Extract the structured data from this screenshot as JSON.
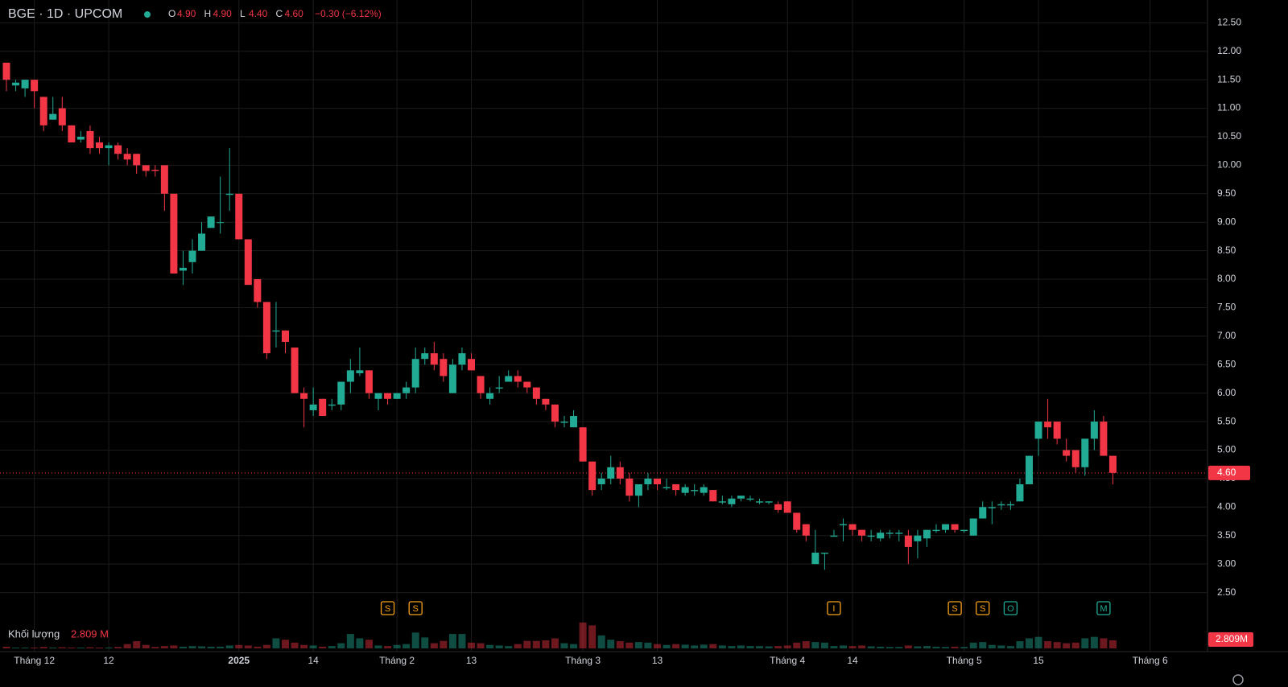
{
  "chart_data": {
    "type": "candlestick",
    "symbol": "BGE · 1D · UPCOM",
    "ohlc_labels": [
      "O",
      "H",
      "L",
      "C"
    ],
    "ohlc_values": [
      "4.90",
      "4.90",
      "4.40",
      "4.60"
    ],
    "change": "−0.30 (−6.12%)",
    "up_color": "#22ab94",
    "down_color": "#f23645",
    "ylim": [
      2.0,
      12.9
    ],
    "yticks": [
      {
        "value": 2.5,
        "label": "2.50"
      },
      {
        "value": 3,
        "label": "3.00"
      },
      {
        "value": 3.5,
        "label": "3.50"
      },
      {
        "value": 4,
        "label": "4.00"
      },
      {
        "value": 4.5,
        "label": "4.50"
      },
      {
        "value": 5,
        "label": "5.00"
      },
      {
        "value": 5.5,
        "label": "5.50"
      },
      {
        "value": 6,
        "label": "6.00"
      },
      {
        "value": 6.5,
        "label": "6.50"
      },
      {
        "value": 7,
        "label": "7.00"
      },
      {
        "value": 7.5,
        "label": "7.50"
      },
      {
        "value": 8,
        "label": "8.00"
      },
      {
        "value": 8.5,
        "label": "8.50"
      },
      {
        "value": 9,
        "label": "9.00"
      },
      {
        "value": 9.5,
        "label": "9.50"
      },
      {
        "value": 10,
        "label": "10.00"
      },
      {
        "value": 10.5,
        "label": "10.50"
      },
      {
        "value": 11,
        "label": "11.00"
      },
      {
        "value": 11.5,
        "label": "11.50"
      },
      {
        "value": 12,
        "label": "12.00"
      },
      {
        "value": 12.5,
        "label": "12.50"
      }
    ],
    "last_price": {
      "value": 4.6,
      "label": "4.60"
    },
    "grid": true,
    "categories": [
      null,
      null,
      null,
      "Tháng 12",
      null,
      null,
      null,
      null,
      null,
      null,
      null,
      "12",
      null,
      null,
      null,
      null,
      null,
      null,
      null,
      null,
      null,
      null,
      null,
      null,
      null,
      "2025",
      null,
      null,
      null,
      null,
      null,
      null,
      null,
      "14",
      null,
      null,
      null,
      null,
      null,
      null,
      null,
      null,
      "Tháng 2",
      null,
      null,
      null,
      null,
      null,
      null,
      null,
      "13",
      null,
      null,
      null,
      null,
      null,
      null,
      null,
      null,
      null,
      null,
      null,
      "Tháng 3",
      null,
      null,
      null,
      null,
      null,
      null,
      null,
      "13",
      null,
      null,
      null,
      null,
      null,
      null,
      null,
      null,
      null,
      null,
      null,
      null,
      null,
      "Tháng 4",
      null,
      null,
      null,
      null,
      null,
      null,
      "14",
      null,
      null,
      null,
      null,
      null,
      null,
      null,
      null,
      null,
      null,
      null,
      "Tháng 5",
      null,
      null,
      null,
      null,
      null,
      null,
      null,
      "15",
      null,
      null,
      null,
      null,
      null,
      null,
      null,
      null,
      null,
      null,
      null,
      "Tháng 6"
    ],
    "ohlc": [
      [
        11.8,
        11.8,
        11.3,
        11.5
      ],
      [
        11.4,
        11.5,
        11.3,
        11.45
      ],
      [
        11.35,
        11.5,
        11.2,
        11.5
      ],
      [
        11.5,
        11.5,
        11.0,
        11.3
      ],
      [
        11.2,
        11.2,
        10.6,
        10.7
      ],
      [
        10.8,
        11.2,
        10.8,
        10.9
      ],
      [
        11.0,
        11.2,
        10.6,
        10.7
      ],
      [
        10.7,
        10.7,
        10.4,
        10.4
      ],
      [
        10.45,
        10.6,
        10.4,
        10.5
      ],
      [
        10.6,
        10.7,
        10.2,
        10.3
      ],
      [
        10.4,
        10.5,
        10.2,
        10.3
      ],
      [
        10.3,
        10.4,
        10.0,
        10.35
      ],
      [
        10.35,
        10.4,
        10.1,
        10.2
      ],
      [
        10.2,
        10.3,
        10.0,
        10.1
      ],
      [
        10.2,
        10.2,
        9.85,
        10.0
      ],
      [
        10.0,
        10.0,
        9.8,
        9.9
      ],
      [
        9.92,
        10.0,
        9.8,
        9.9
      ],
      [
        10.0,
        10.0,
        9.2,
        9.5
      ],
      [
        9.5,
        9.5,
        8.1,
        8.1
      ],
      [
        8.15,
        8.5,
        7.9,
        8.2
      ],
      [
        8.3,
        8.7,
        8.1,
        8.5
      ],
      [
        8.5,
        9.0,
        8.5,
        8.8
      ],
      [
        8.9,
        9.1,
        8.9,
        9.1
      ],
      [
        9.0,
        9.8,
        8.8,
        9.0
      ],
      [
        9.48,
        10.3,
        9.2,
        9.5
      ],
      [
        9.5,
        9.5,
        8.7,
        8.7
      ],
      [
        8.7,
        8.7,
        7.9,
        7.9
      ],
      [
        8.0,
        8.0,
        7.5,
        7.6
      ],
      [
        7.6,
        7.6,
        6.6,
        6.7
      ],
      [
        7.08,
        7.6,
        6.8,
        7.1
      ],
      [
        7.1,
        7.1,
        6.7,
        6.9
      ],
      [
        6.8,
        6.8,
        6.0,
        6.0
      ],
      [
        6.0,
        6.1,
        5.4,
        5.9
      ],
      [
        5.7,
        6.1,
        5.6,
        5.8
      ],
      [
        5.9,
        5.9,
        5.6,
        5.6
      ],
      [
        5.78,
        5.9,
        5.7,
        5.8
      ],
      [
        5.8,
        6.2,
        5.7,
        6.2
      ],
      [
        6.2,
        6.6,
        6.0,
        6.4
      ],
      [
        6.35,
        6.8,
        6.3,
        6.4
      ],
      [
        6.4,
        6.4,
        5.9,
        6.0
      ],
      [
        5.9,
        6.0,
        5.7,
        6.0
      ],
      [
        6.0,
        6.0,
        5.8,
        5.9
      ],
      [
        5.9,
        6.0,
        5.9,
        6.0
      ],
      [
        6.0,
        6.2,
        5.9,
        6.1
      ],
      [
        6.1,
        6.8,
        6.0,
        6.6
      ],
      [
        6.6,
        6.8,
        6.5,
        6.7
      ],
      [
        6.7,
        6.9,
        6.4,
        6.5
      ],
      [
        6.6,
        6.7,
        6.2,
        6.3
      ],
      [
        6.0,
        6.6,
        6.0,
        6.5
      ],
      [
        6.5,
        6.8,
        6.4,
        6.7
      ],
      [
        6.6,
        6.7,
        6.4,
        6.4
      ],
      [
        6.3,
        6.3,
        5.9,
        6.0
      ],
      [
        5.9,
        6.1,
        5.8,
        6.0
      ],
      [
        6.08,
        6.3,
        6.0,
        6.1
      ],
      [
        6.2,
        6.4,
        6.2,
        6.3
      ],
      [
        6.3,
        6.4,
        6.1,
        6.2
      ],
      [
        6.2,
        6.2,
        6.0,
        6.1
      ],
      [
        6.1,
        6.1,
        5.8,
        5.9
      ],
      [
        5.9,
        5.9,
        5.7,
        5.8
      ],
      [
        5.8,
        5.8,
        5.4,
        5.5
      ],
      [
        5.48,
        5.6,
        5.4,
        5.5
      ],
      [
        5.4,
        5.7,
        5.4,
        5.6
      ],
      [
        5.4,
        5.4,
        4.8,
        4.8
      ],
      [
        4.8,
        4.8,
        4.2,
        4.3
      ],
      [
        4.4,
        4.6,
        4.3,
        4.5
      ],
      [
        4.5,
        4.9,
        4.4,
        4.7
      ],
      [
        4.7,
        4.8,
        4.4,
        4.5
      ],
      [
        4.5,
        4.6,
        4.1,
        4.2
      ],
      [
        4.2,
        4.4,
        4.0,
        4.4
      ],
      [
        4.4,
        4.6,
        4.3,
        4.5
      ],
      [
        4.5,
        4.5,
        4.3,
        4.4
      ],
      [
        4.33,
        4.5,
        4.3,
        4.35
      ],
      [
        4.4,
        4.4,
        4.2,
        4.3
      ],
      [
        4.25,
        4.4,
        4.2,
        4.35
      ],
      [
        4.28,
        4.4,
        4.2,
        4.3
      ],
      [
        4.25,
        4.4,
        4.2,
        4.35
      ],
      [
        4.3,
        4.3,
        4.1,
        4.1
      ],
      [
        4.08,
        4.2,
        4.05,
        4.1
      ],
      [
        4.05,
        4.2,
        4.0,
        4.15
      ],
      [
        4.15,
        4.2,
        4.1,
        4.2
      ],
      [
        4.13,
        4.2,
        4.1,
        4.15
      ],
      [
        4.08,
        4.15,
        4.05,
        4.1
      ],
      [
        4.08,
        4.1,
        4.05,
        4.1
      ],
      [
        4.05,
        4.1,
        3.9,
        3.95
      ],
      [
        4.1,
        4.1,
        3.9,
        3.9
      ],
      [
        3.9,
        3.9,
        3.55,
        3.6
      ],
      [
        3.7,
        3.7,
        3.4,
        3.5
      ],
      [
        3.0,
        3.6,
        3.0,
        3.2
      ],
      [
        3.18,
        3.2,
        2.9,
        3.2
      ],
      [
        3.48,
        3.6,
        3.5,
        3.5
      ],
      [
        3.68,
        3.8,
        3.4,
        3.7
      ],
      [
        3.7,
        3.7,
        3.5,
        3.6
      ],
      [
        3.6,
        3.6,
        3.4,
        3.5
      ],
      [
        3.48,
        3.6,
        3.4,
        3.5
      ],
      [
        3.45,
        3.6,
        3.4,
        3.55
      ],
      [
        3.53,
        3.6,
        3.45,
        3.55
      ],
      [
        3.53,
        3.6,
        3.4,
        3.55
      ],
      [
        3.5,
        3.6,
        3.0,
        3.3
      ],
      [
        3.4,
        3.6,
        3.1,
        3.5
      ],
      [
        3.45,
        3.6,
        3.3,
        3.6
      ],
      [
        3.58,
        3.7,
        3.55,
        3.6
      ],
      [
        3.6,
        3.7,
        3.55,
        3.7
      ],
      [
        3.7,
        3.7,
        3.55,
        3.6
      ],
      [
        3.58,
        3.6,
        3.55,
        3.6
      ],
      [
        3.5,
        3.8,
        3.5,
        3.8
      ],
      [
        3.8,
        4.1,
        3.8,
        4.0
      ],
      [
        3.98,
        4.1,
        3.7,
        4.0
      ],
      [
        4.03,
        4.1,
        3.95,
        4.05
      ],
      [
        4.03,
        4.1,
        3.95,
        4.05
      ],
      [
        4.1,
        4.5,
        4.1,
        4.4
      ],
      [
        4.4,
        4.9,
        4.4,
        4.9
      ],
      [
        5.2,
        5.5,
        4.9,
        5.5
      ],
      [
        5.5,
        5.9,
        5.2,
        5.4
      ],
      [
        5.5,
        5.5,
        5.1,
        5.2
      ],
      [
        5.0,
        5.2,
        4.8,
        4.9
      ],
      [
        5.0,
        5.0,
        4.6,
        4.7
      ],
      [
        4.7,
        5.2,
        4.55,
        5.2
      ],
      [
        5.2,
        5.7,
        5.0,
        5.5
      ],
      [
        5.5,
        5.6,
        4.9,
        4.9
      ],
      [
        4.9,
        4.9,
        4.4,
        4.6
      ],
      null,
      null,
      null,
      null
    ],
    "volume_title": "Khối lượng",
    "volume_label": "2.809 M",
    "volume_badge": "2.809M",
    "vlim": [
      0,
      9.5
    ],
    "volume": [
      0.6,
      0.3,
      0.3,
      0.3,
      0.5,
      0.3,
      0.4,
      0.3,
      0.3,
      0.4,
      0.3,
      0.3,
      0.5,
      1.5,
      2.5,
      1.2,
      0.5,
      0.8,
      1.0,
      0.6,
      0.8,
      0.7,
      0.6,
      0.6,
      1.0,
      1.2,
      1.0,
      0.6,
      1.2,
      3.5,
      3.0,
      2.0,
      1.2,
      1.0,
      0.6,
      0.8,
      1.8,
      5.0,
      3.5,
      3.0,
      1.0,
      0.8,
      1.2,
      1.5,
      5.5,
      3.8,
      1.8,
      2.6,
      5.0,
      5.0,
      2.0,
      1.8,
      1.2,
      1.0,
      0.8,
      1.5,
      2.6,
      2.6,
      2.8,
      3.5,
      1.8,
      1.5,
      9.0,
      8.0,
      4.5,
      3.0,
      2.5,
      2.0,
      2.2,
      2.0,
      1.5,
      1.2,
      1.5,
      1.3,
      1.0,
      1.3,
      1.5,
      1.0,
      0.8,
      1.0,
      0.8,
      0.8,
      0.7,
      0.8,
      1.0,
      2.0,
      2.5,
      2.2,
      2.0,
      0.8,
      1.0,
      0.8,
      1.0,
      0.7,
      0.6,
      0.5,
      0.5,
      1.0,
      0.7,
      0.8,
      0.6,
      0.5,
      0.6,
      0.5,
      2.0,
      2.2,
      1.2,
      1.0,
      0.8,
      2.5,
      3.5,
      4.0,
      2.5,
      2.2,
      1.8,
      2.0,
      3.5,
      4.0,
      3.5,
      2.809,
      null,
      null,
      null,
      null
    ],
    "events": [
      {
        "index": 41,
        "label": "S",
        "kind": "orange"
      },
      {
        "index": 44,
        "label": "S",
        "kind": "orange"
      },
      {
        "index": 89,
        "label": "I",
        "kind": "orange"
      },
      {
        "index": 102,
        "label": "S",
        "kind": "orange"
      },
      {
        "index": 105,
        "label": "S",
        "kind": "orange"
      },
      {
        "index": 108,
        "label": "O",
        "kind": "green"
      },
      {
        "index": 118,
        "label": "M",
        "kind": "green"
      }
    ]
  }
}
